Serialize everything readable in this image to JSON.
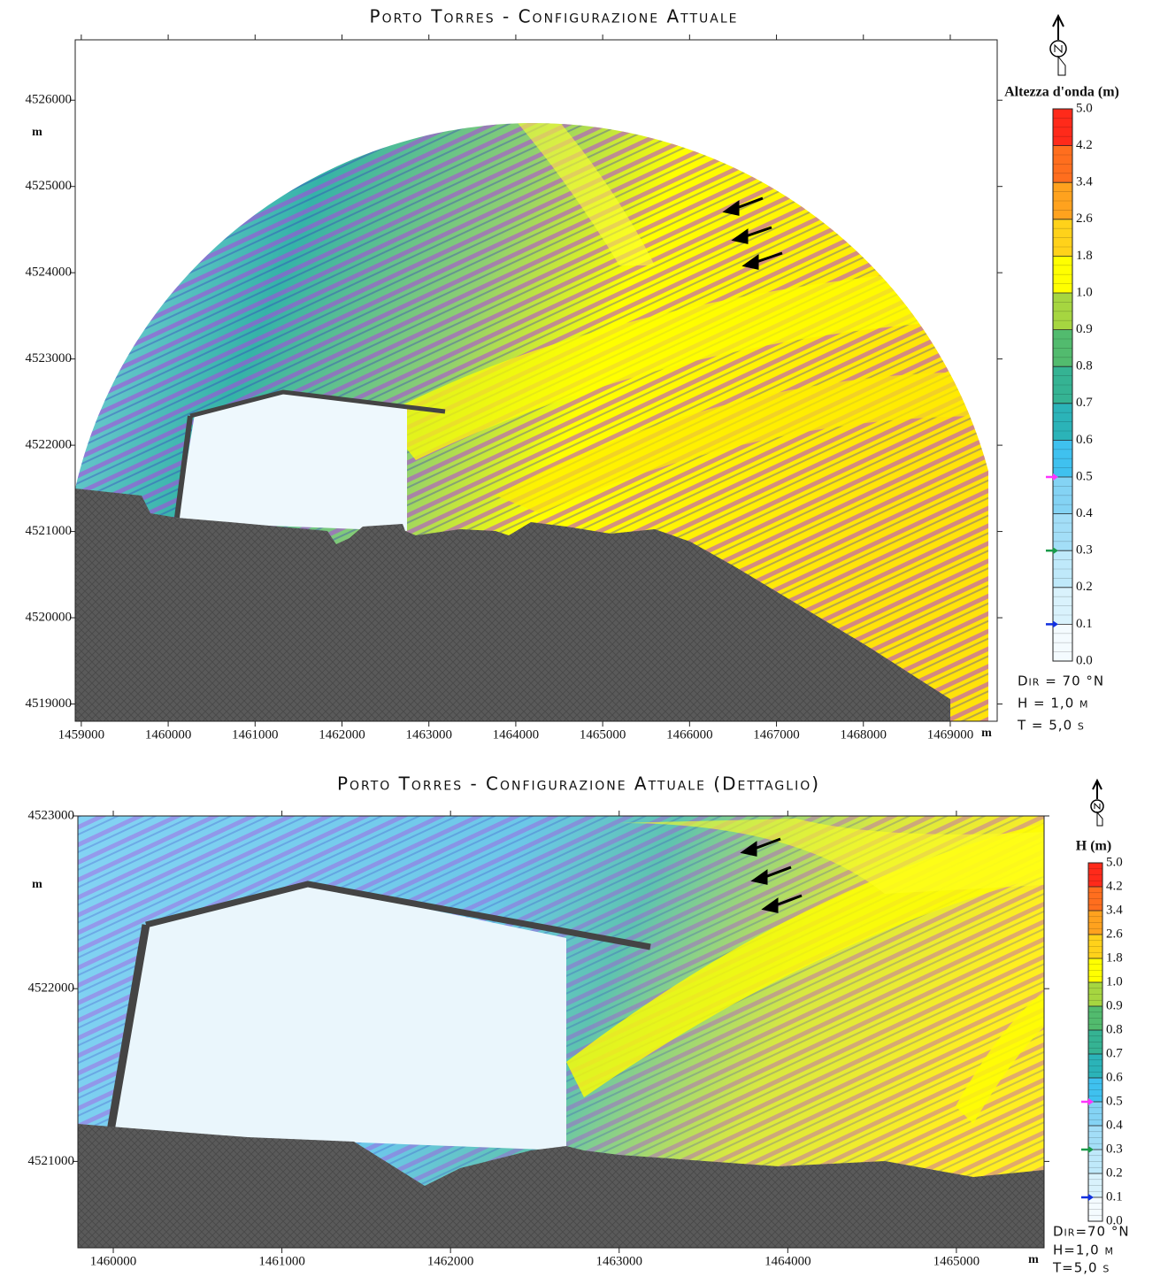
{
  "chart_data": [
    {
      "type": "contour-map",
      "title": "Porto Torres - Configurazione Attuale",
      "x_label": "m",
      "y_label": "m",
      "xlim": [
        1458930,
        1469540
      ],
      "ylim": [
        4518800,
        4526700
      ],
      "xticks": [
        1459000,
        1460000,
        1461000,
        1462000,
        1463000,
        1464000,
        1465000,
        1466000,
        1467000,
        1468000,
        1469000
      ],
      "yticks": [
        4519000,
        4520000,
        4521000,
        4522000,
        4523000,
        4524000,
        4525000,
        4526000
      ],
      "colorbar": {
        "title": "Altezza d'onda (m)",
        "ticks": [
          {
            "value": 0,
            "label": "0.0"
          },
          0.1,
          0.2,
          0.3,
          0.4,
          0.5,
          0.6,
          0.7,
          0.8,
          0.9,
          {
            "value": 1,
            "label": "1.0"
          },
          1.8,
          2.6,
          3.4,
          4.2,
          {
            "value": 5,
            "label": "5.0"
          }
        ],
        "colors": [
          "#f4fbff",
          "#d9f2fc",
          "#bfe9fa",
          "#a3def7",
          "#84d3f4",
          "#3fc1ef",
          "#2bb3b8",
          "#35b393",
          "#52bb6e",
          "#a6d640",
          "#ffff00",
          "#ffd21a",
          "#ffa21e",
          "#ff6e1e",
          "#ff2a1a"
        ]
      },
      "contour_levels": [
        {
          "value": 0.5,
          "color": "#ff33ff"
        },
        {
          "value": 0.3,
          "color": "#1a9a4a"
        },
        {
          "value": 0.1,
          "color": "#1030e0"
        }
      ],
      "annotations": [
        "Dir = 70 °N",
        "H = 1,0 m",
        "T = 5,0 s"
      ]
    },
    {
      "type": "contour-map",
      "title": "Porto Torres - Configurazione Attuale (Dettaglio)",
      "x_label": "m",
      "y_label": "m",
      "xlim": [
        1459790,
        1465520
      ],
      "ylim": [
        4520500,
        4523000
      ],
      "xticks": [
        1460000,
        1461000,
        1462000,
        1463000,
        1464000,
        1465000
      ],
      "yticks": [
        4521000,
        4522000,
        4523000
      ],
      "colorbar": {
        "title": "H (m)",
        "ticks": [
          {
            "value": 0,
            "label": "0.0"
          },
          0.1,
          0.2,
          0.3,
          0.4,
          0.5,
          0.6,
          0.7,
          0.8,
          0.9,
          {
            "value": 1,
            "label": "1.0"
          },
          1.8,
          2.6,
          3.4,
          4.2,
          {
            "value": 5,
            "label": "5.0"
          }
        ],
        "colors": [
          "#f4fbff",
          "#d9f2fc",
          "#bfe9fa",
          "#a3def7",
          "#84d3f4",
          "#3fc1ef",
          "#2bb3b8",
          "#35b393",
          "#52bb6e",
          "#a6d640",
          "#ffff00",
          "#ffd21a",
          "#ffa21e",
          "#ff6e1e",
          "#ff2a1a"
        ]
      },
      "contour_levels": [
        {
          "value": 0.5,
          "color": "#ff33ff"
        },
        {
          "value": 0.3,
          "color": "#1a9a4a"
        },
        {
          "value": 0.1,
          "color": "#1030e0"
        }
      ],
      "annotations": [
        "Dir=70 °N",
        "H=1,0 m",
        "T=5,0 s"
      ]
    }
  ]
}
